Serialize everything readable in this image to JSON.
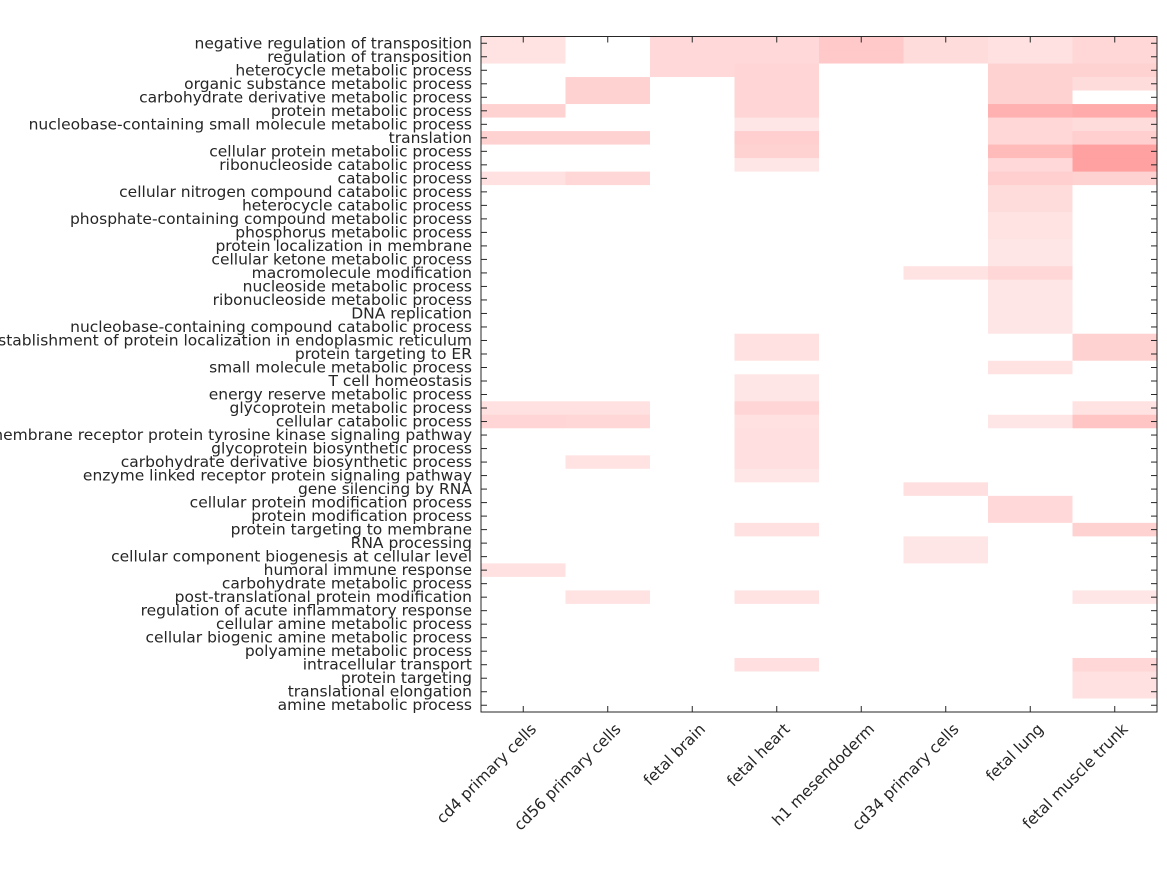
{
  "chart_data": {
    "type": "heatmap",
    "title": "",
    "xlabel": "",
    "ylabel": "",
    "color_min": "#ffffff",
    "color_max": "#ff9c9c",
    "value_range": [
      0,
      1
    ],
    "columns": [
      "cd4 primary cells",
      "cd56 primary cells",
      "fetal brain",
      "fetal heart",
      "h1 mesendoderm",
      "cd34 primary cells",
      "fetal lung",
      "fetal muscle trunk"
    ],
    "rows": [
      "negative regulation of transposition",
      "regulation of transposition",
      "heterocycle metabolic process",
      "organic substance metabolic process",
      "carbohydrate derivative metabolic process",
      "protein metabolic process",
      "nucleobase-containing small molecule metabolic process",
      "translation",
      "cellular protein metabolic process",
      "ribonucleoside catabolic process",
      "catabolic process",
      "cellular nitrogen compound catabolic process",
      "heterocycle catabolic process",
      "phosphate-containing compound metabolic process",
      "phosphorus metabolic process",
      "protein localization in membrane",
      "cellular ketone metabolic process",
      "macromolecule modification",
      "nucleoside metabolic process",
      "ribonucleoside metabolic process",
      "DNA replication",
      "nucleobase-containing compound catabolic process",
      "establishment of protein localization in endoplasmic reticulum",
      "protein targeting to ER",
      "small molecule metabolic process",
      "T cell homeostasis",
      "energy reserve metabolic process",
      "glycoprotein metabolic process",
      "cellular catabolic process",
      "transmembrane receptor protein tyrosine kinase signaling pathway",
      "glycoprotein biosynthetic process",
      "carbohydrate derivative biosynthetic process",
      "enzyme linked receptor protein signaling pathway",
      "gene silencing by RNA",
      "cellular protein modification process",
      "protein modification process",
      "protein targeting to membrane",
      "RNA processing",
      "cellular component biogenesis at cellular level",
      "humoral immune response",
      "carbohydrate metabolic process",
      "post-translational protein modification",
      "regulation of acute inflammatory response",
      "cellular amine metabolic process",
      "cellular biogenic amine metabolic process",
      "polyamine metabolic process",
      "intracellular transport",
      "protein targeting",
      "translational elongation",
      "amine metabolic process"
    ],
    "values": [
      [
        0.28,
        0,
        0.38,
        0.38,
        0.55,
        0.35,
        0.3,
        0.4
      ],
      [
        0.28,
        0,
        0.38,
        0.38,
        0.55,
        0.35,
        0.3,
        0.4
      ],
      [
        0,
        0,
        0.38,
        0.42,
        0,
        0,
        0.45,
        0.45
      ],
      [
        0,
        0.45,
        0,
        0.42,
        0,
        0,
        0.45,
        0.35
      ],
      [
        0,
        0.45,
        0,
        0.42,
        0,
        0,
        0.45,
        0
      ],
      [
        0.45,
        0,
        0,
        0.42,
        0,
        0,
        0.8,
        0.85
      ],
      [
        0,
        0,
        0,
        0.25,
        0,
        0,
        0.4,
        0.35
      ],
      [
        0.45,
        0.45,
        0,
        0.5,
        0,
        0,
        0.4,
        0.5
      ],
      [
        0,
        0,
        0,
        0.45,
        0,
        0,
        0.7,
        0.95
      ],
      [
        0,
        0,
        0,
        0.25,
        0,
        0,
        0.38,
        0.95
      ],
      [
        0.3,
        0.4,
        0,
        0,
        0,
        0,
        0.5,
        0.45
      ],
      [
        0,
        0,
        0,
        0,
        0,
        0,
        0.35,
        0
      ],
      [
        0,
        0,
        0,
        0,
        0,
        0,
        0.35,
        0
      ],
      [
        0,
        0,
        0,
        0,
        0,
        0,
        0.28,
        0
      ],
      [
        0,
        0,
        0,
        0,
        0,
        0,
        0.28,
        0
      ],
      [
        0,
        0,
        0,
        0,
        0,
        0,
        0.25,
        0
      ],
      [
        0,
        0,
        0,
        0,
        0,
        0,
        0.25,
        0
      ],
      [
        0,
        0,
        0,
        0,
        0,
        0.28,
        0.4,
        0
      ],
      [
        0,
        0,
        0,
        0,
        0,
        0,
        0.25,
        0
      ],
      [
        0,
        0,
        0,
        0,
        0,
        0,
        0.25,
        0
      ],
      [
        0,
        0,
        0,
        0,
        0,
        0,
        0.25,
        0
      ],
      [
        0,
        0,
        0,
        0,
        0,
        0,
        0.25,
        0
      ],
      [
        0,
        0,
        0,
        0.3,
        0,
        0,
        0,
        0.45
      ],
      [
        0,
        0,
        0,
        0.3,
        0,
        0,
        0,
        0.45
      ],
      [
        0,
        0,
        0,
        0,
        0,
        0,
        0.28,
        0
      ],
      [
        0,
        0,
        0,
        0.25,
        0,
        0,
        0,
        0
      ],
      [
        0,
        0,
        0,
        0.25,
        0,
        0,
        0,
        0
      ],
      [
        0.3,
        0.3,
        0,
        0.42,
        0,
        0,
        0,
        0.28
      ],
      [
        0.42,
        0.4,
        0,
        0.3,
        0,
        0,
        0.25,
        0.6
      ],
      [
        0,
        0,
        0,
        0.32,
        0,
        0,
        0,
        0
      ],
      [
        0,
        0,
        0,
        0.32,
        0,
        0,
        0,
        0
      ],
      [
        0,
        0.28,
        0,
        0.32,
        0,
        0,
        0,
        0
      ],
      [
        0,
        0,
        0,
        0.25,
        0,
        0,
        0,
        0
      ],
      [
        0,
        0,
        0,
        0,
        0,
        0.32,
        0,
        0
      ],
      [
        0,
        0,
        0,
        0,
        0,
        0,
        0.38,
        0
      ],
      [
        0,
        0,
        0,
        0,
        0,
        0,
        0.38,
        0
      ],
      [
        0,
        0,
        0,
        0.3,
        0,
        0,
        0,
        0.45
      ],
      [
        0,
        0,
        0,
        0,
        0,
        0.25,
        0,
        0
      ],
      [
        0,
        0,
        0,
        0,
        0,
        0.25,
        0,
        0
      ],
      [
        0.3,
        0,
        0,
        0,
        0,
        0,
        0,
        0
      ],
      [
        0,
        0,
        0,
        0,
        0,
        0,
        0,
        0
      ],
      [
        0,
        0.28,
        0,
        0.28,
        0,
        0,
        0,
        0.25
      ],
      [
        0,
        0,
        0,
        0,
        0,
        0,
        0,
        0
      ],
      [
        0,
        0,
        0,
        0,
        0,
        0,
        0,
        0
      ],
      [
        0,
        0,
        0,
        0,
        0,
        0,
        0,
        0
      ],
      [
        0,
        0,
        0,
        0,
        0,
        0,
        0,
        0
      ],
      [
        0,
        0,
        0,
        0.32,
        0,
        0,
        0,
        0.4
      ],
      [
        0,
        0,
        0,
        0,
        0,
        0,
        0,
        0.3
      ],
      [
        0,
        0,
        0,
        0,
        0,
        0,
        0,
        0.3
      ],
      [
        0,
        0,
        0,
        0,
        0,
        0,
        0,
        0
      ]
    ]
  }
}
